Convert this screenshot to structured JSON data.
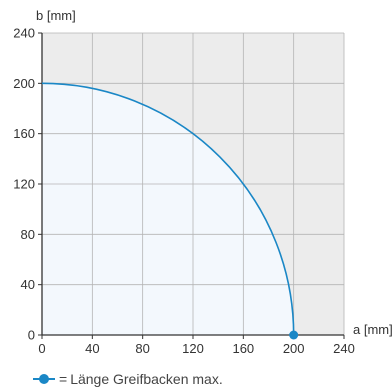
{
  "chart_data": {
    "type": "line",
    "title": "",
    "xlabel": "a [mm]",
    "ylabel": "b [mm]",
    "xlim": [
      0,
      240
    ],
    "ylim": [
      0,
      240
    ],
    "x_ticks": [
      0,
      40,
      80,
      120,
      160,
      200,
      240
    ],
    "y_ticks": [
      0,
      40,
      80,
      120,
      160,
      200,
      240
    ],
    "grid": true,
    "legend_position": "bottom-left",
    "series": [
      {
        "name": "Länge Greifbacken max.",
        "shape": "quarter-circle",
        "radius": 200,
        "x": [
          0,
          40,
          80,
          120,
          160,
          200
        ],
        "y": [
          200,
          196,
          183,
          160,
          120,
          0
        ],
        "marker_points": [
          [
            200,
            0
          ]
        ],
        "fill_under": true
      }
    ]
  },
  "legend": {
    "equals_sign": "=",
    "label": "Länge Greifbacken max."
  },
  "colors": {
    "series": "#1a87c6",
    "fill_inside": "#f3f8fd",
    "plot_background": "#ececec",
    "grid": "#b4b4b4",
    "axis": "#333333"
  }
}
